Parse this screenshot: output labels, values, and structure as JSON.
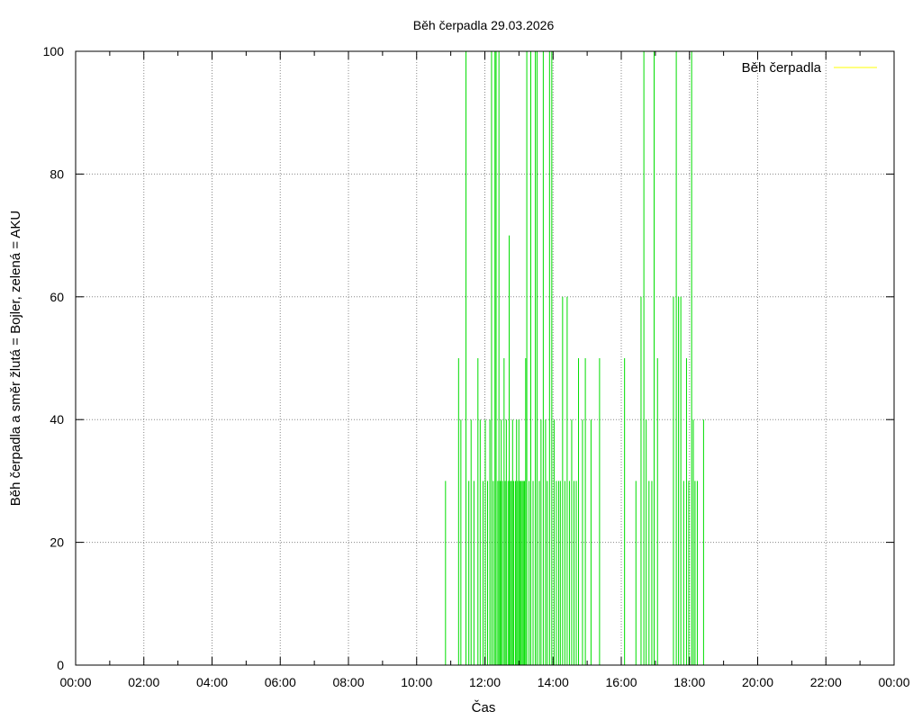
{
  "chart_data": {
    "type": "bar",
    "title": "Běh čerpadla 29.03.2026",
    "xlabel": "Čas",
    "ylabel": "Běh čerpadla a směr žlutá = Bojler, zelená = AKU",
    "xlim": [
      "00:00",
      "24:00"
    ],
    "ylim": [
      0,
      100
    ],
    "grid": true,
    "legend_position": "top-right",
    "x_tick_labels": [
      "00:00",
      "02:00",
      "04:00",
      "06:00",
      "08:00",
      "10:00",
      "12:00",
      "14:00",
      "16:00",
      "18:00",
      "20:00",
      "22:00",
      "00:00"
    ],
    "y_tick_labels": [
      "0",
      "20",
      "40",
      "60",
      "80",
      "100"
    ],
    "series": [
      {
        "name": "Běh čerpadla",
        "color": "#ffff00",
        "x": [],
        "values": []
      },
      {
        "color": "#00dd00",
        "x": [
          "10:50",
          "11:13",
          "11:17",
          "11:26",
          "11:31",
          "11:35",
          "11:40",
          "11:47",
          "11:51",
          "11:56",
          "12:00",
          "12:04",
          "12:08",
          "12:11",
          "12:14",
          "12:17",
          "12:19",
          "12:22",
          "12:24",
          "12:26",
          "12:28",
          "12:30",
          "12:33",
          "12:35",
          "12:37",
          "12:40",
          "12:42",
          "12:44",
          "12:46",
          "12:48",
          "12:50",
          "12:53",
          "12:55",
          "12:57",
          "12:59",
          "13:01",
          "13:03",
          "13:05",
          "13:07",
          "13:09",
          "13:11",
          "13:13",
          "13:17",
          "13:20",
          "13:24",
          "13:28",
          "13:31",
          "13:35",
          "13:38",
          "13:42",
          "13:46",
          "13:49",
          "13:53",
          "13:57",
          "14:01",
          "14:05",
          "14:09",
          "14:12",
          "14:16",
          "14:20",
          "14:24",
          "14:28",
          "14:32",
          "14:36",
          "14:40",
          "14:44",
          "14:51",
          "14:56",
          "15:06",
          "15:21",
          "16:05",
          "16:25",
          "16:34",
          "16:39",
          "16:43",
          "16:48",
          "16:53",
          "16:57",
          "17:03",
          "17:31",
          "17:36",
          "17:40",
          "17:44",
          "17:49",
          "17:54",
          "17:58",
          "18:03",
          "18:06",
          "18:09",
          "18:13",
          "18:24"
        ],
        "values": [
          30,
          50,
          40,
          100,
          30,
          40,
          30,
          50,
          40,
          30,
          40,
          30,
          40,
          100,
          30,
          100,
          100,
          30,
          100,
          30,
          40,
          30,
          50,
          30,
          40,
          30,
          70,
          30,
          30,
          40,
          30,
          30,
          40,
          30,
          40,
          30,
          30,
          30,
          30,
          30,
          50,
          100,
          30,
          100,
          30,
          100,
          100,
          30,
          40,
          100,
          40,
          30,
          100,
          100,
          40,
          30,
          30,
          30,
          60,
          30,
          60,
          30,
          40,
          30,
          30,
          50,
          40,
          50,
          40,
          50,
          50,
          30,
          60,
          100,
          40,
          30,
          30,
          100,
          50,
          60,
          100,
          60,
          60,
          30,
          50,
          30,
          100,
          40,
          30,
          30,
          40
        ]
      }
    ]
  }
}
